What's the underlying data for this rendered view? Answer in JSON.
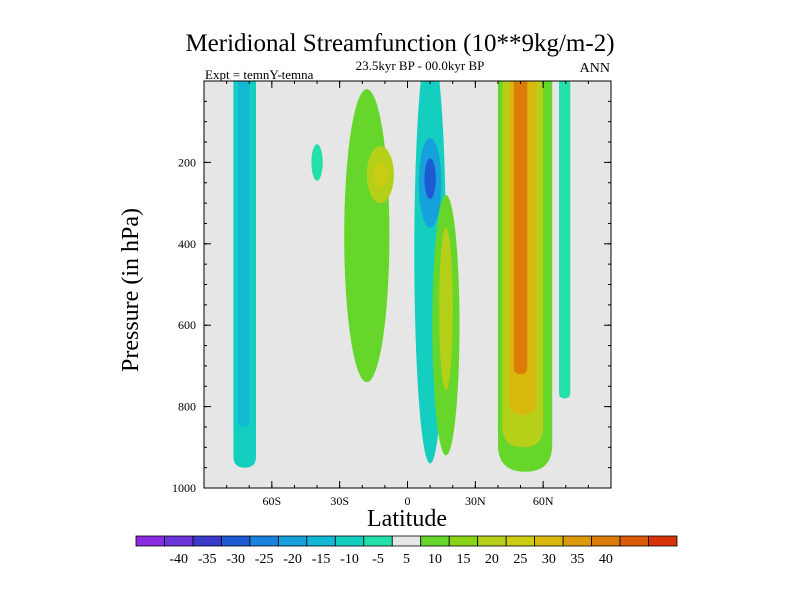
{
  "colors": {
    "background": "#e6e6e6",
    "frame": "#000000",
    "palette": [
      "#8a2be2",
      "#6a35d8",
      "#3a3ac8",
      "#1e5ad2",
      "#1a82de",
      "#16a0dc",
      "#12b8d4",
      "#14cfc0",
      "#22e0a8",
      "#e6e6e6",
      "#66d62a",
      "#8ad418",
      "#b6d01a",
      "#cccc12",
      "#d9b80e",
      "#dc9a0a",
      "#dc7c08",
      "#dc5a08",
      "#d83208"
    ]
  },
  "chart_data": {
    "type": "heatmap",
    "title": "Meridional Streamfunction (10**9kg/m-2)",
    "subtitle_center": "23.5kyr BP - 00.0kyr BP",
    "subtitle_left": "Expt = temnY-temna",
    "subtitle_right": "ANN",
    "xlabel": "Latitude",
    "ylabel": "Pressure (in hPa)",
    "xlim": [
      -90,
      90
    ],
    "ylim": [
      1000,
      0
    ],
    "xticks": [
      {
        "value": -60,
        "label": "60S"
      },
      {
        "value": -30,
        "label": "30S"
      },
      {
        "value": 0,
        "label": "0"
      },
      {
        "value": 30,
        "label": "30N"
      },
      {
        "value": 60,
        "label": "60N"
      }
    ],
    "yticks": [
      {
        "value": 200,
        "label": "200"
      },
      {
        "value": 400,
        "label": "400"
      },
      {
        "value": 600,
        "label": "600"
      },
      {
        "value": 800,
        "label": "800"
      },
      {
        "value": 1000,
        "label": "1000"
      }
    ],
    "colorbar_levels": [
      -40,
      -35,
      -30,
      -25,
      -20,
      -15,
      -10,
      -5,
      5,
      10,
      15,
      20,
      25,
      30,
      35,
      40
    ],
    "features": [
      {
        "name": "southern-negative-column",
        "kind": "column",
        "lat_min": -77,
        "lat_max": -67,
        "p_top": 0,
        "p_bottom": 950,
        "color_index": 7
      },
      {
        "name": "southern-negative-core",
        "kind": "column",
        "lat_min": -75,
        "lat_max": -70,
        "p_top": 0,
        "p_bottom": 850,
        "color_index": 6
      },
      {
        "name": "small-negative-cell",
        "kind": "blob",
        "lat_center": -40,
        "p_center": 200,
        "lat_half": 2.5,
        "p_half": 45,
        "color_index": 8
      },
      {
        "name": "tropical-positive-tongue",
        "kind": "blob",
        "lat_center": -18,
        "p_center": 380,
        "lat_half": 10,
        "p_half": 360,
        "color_index": 10
      },
      {
        "name": "tropical-positive-core",
        "kind": "blob",
        "lat_center": -12,
        "p_center": 230,
        "lat_half": 6,
        "p_half": 70,
        "color_index": 12
      },
      {
        "name": "tropical-positive-max",
        "kind": "blob",
        "lat_center": -12,
        "p_center": 230,
        "lat_half": 3,
        "p_half": 30,
        "color_index": 13
      },
      {
        "name": "equatorial-negative-cell",
        "kind": "blob",
        "lat_center": 10,
        "p_center": 420,
        "lat_half": 7,
        "p_half": 520,
        "color_index": 7
      },
      {
        "name": "equatorial-negative-core",
        "kind": "blob",
        "lat_center": 10,
        "p_center": 250,
        "lat_half": 5,
        "p_half": 110,
        "color_index": 5
      },
      {
        "name": "equatorial-negative-max",
        "kind": "blob",
        "lat_center": 10,
        "p_center": 240,
        "lat_half": 2.5,
        "p_half": 50,
        "color_index": 3
      },
      {
        "name": "northern-positive-cell",
        "kind": "blob",
        "lat_center": 17,
        "p_center": 600,
        "lat_half": 6,
        "p_half": 320,
        "color_index": 10
      },
      {
        "name": "northern-positive-core",
        "kind": "blob",
        "lat_center": 17,
        "p_center": 560,
        "lat_half": 3,
        "p_half": 200,
        "color_index": 12
      },
      {
        "name": "midlatitude-positive-column",
        "kind": "column",
        "lat_min": 40,
        "lat_max": 64,
        "p_top": 0,
        "p_bottom": 960,
        "color_index": 10
      },
      {
        "name": "midlatitude-positive-band-1",
        "kind": "column",
        "lat_min": 42,
        "lat_max": 60,
        "p_top": 0,
        "p_bottom": 900,
        "color_index": 12
      },
      {
        "name": "midlatitude-positive-band-2",
        "kind": "column",
        "lat_min": 45,
        "lat_max": 57,
        "p_top": 0,
        "p_bottom": 820,
        "color_index": 14
      },
      {
        "name": "midlatitude-positive-core",
        "kind": "column",
        "lat_min": 47,
        "lat_max": 53,
        "p_top": 0,
        "p_bottom": 720,
        "color_index": 16
      },
      {
        "name": "northern-negative-column",
        "kind": "column",
        "lat_min": 67,
        "lat_max": 72,
        "p_top": 0,
        "p_bottom": 780,
        "color_index": 8
      }
    ]
  }
}
